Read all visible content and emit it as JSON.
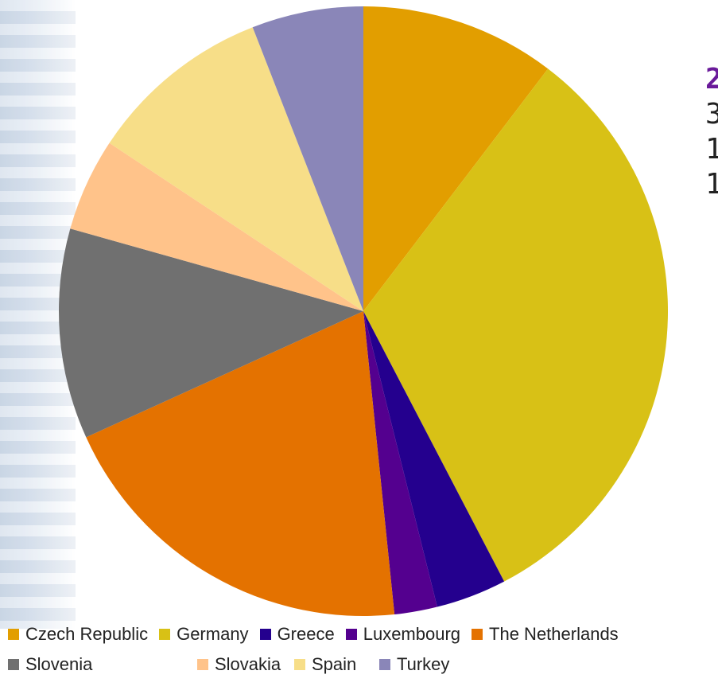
{
  "chart_data": {
    "type": "pie",
    "title": "",
    "categories": [
      "Czech Republic",
      "Germany",
      "Greece",
      "Luxembourg",
      "The Netherlands",
      "Slovenia",
      "Slovakia",
      "Spain",
      "Turkey"
    ],
    "values": [
      10.5,
      32.4,
      3.8,
      2.3,
      20.1,
      11.3,
      5.0,
      9.9,
      6.0
    ],
    "unit": "%",
    "start_angle_deg": 0,
    "direction": "clockwise",
    "colors": [
      "#E29E00",
      "#D8C116",
      "#24008E",
      "#54008F",
      "#E47200",
      "#707070",
      "#FFC38A",
      "#F7DE88",
      "#8A86B8"
    ],
    "legend_placement": "bottom"
  },
  "side_text": {
    "highlight": "2",
    "lines": [
      "3",
      "1",
      "1"
    ]
  }
}
